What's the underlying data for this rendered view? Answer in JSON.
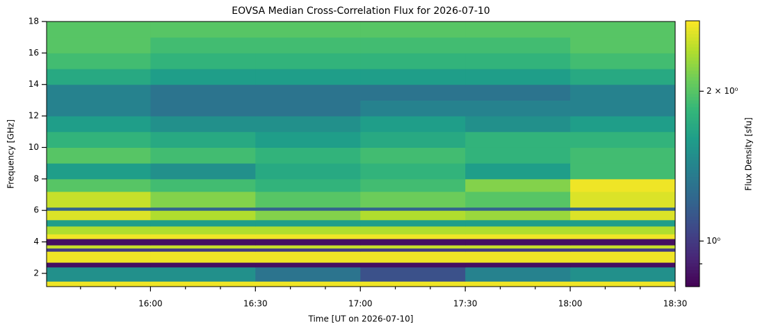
{
  "chart_data": {
    "type": "heatmap",
    "title": "EOVSA Median Cross-Correlation Flux for 2026-07-10",
    "x_label": "Time [UT on 2026-07-10]",
    "y_label": "Frequency [GHz]",
    "colorbar_label": "Flux Density [sfu]",
    "colormap": "viridis",
    "color_scale": "log",
    "xlim": [
      930.3,
      1110
    ],
    "ylim": [
      1.16,
      18
    ],
    "clim": [
      0.81,
      2.77
    ],
    "xticks": [
      {
        "value": 960,
        "label": "16:00"
      },
      {
        "value": 990,
        "label": "16:30"
      },
      {
        "value": 1020,
        "label": "17:00"
      },
      {
        "value": 1050,
        "label": "17:30"
      },
      {
        "value": 1080,
        "label": "18:00"
      },
      {
        "value": 1110,
        "label": "18:30"
      }
    ],
    "xminorticks": [
      940,
      950,
      970,
      980,
      1000,
      1010,
      1030,
      1040,
      1060,
      1070,
      1090,
      1100
    ],
    "yticks": [
      2,
      4,
      6,
      8,
      10,
      12,
      14,
      16,
      18
    ],
    "cticks": [
      {
        "value": 1,
        "label": "10⁰"
      },
      {
        "value": 2,
        "label": "2 × 10⁰"
      }
    ],
    "cminorticks": [
      0.9
    ],
    "x_edges": [
      930.3,
      960,
      990,
      1020,
      1050,
      1080,
      1110
    ],
    "y_edges": [
      1.16,
      1.5,
      2.4,
      2.7,
      3.4,
      3.6,
      3.8,
      4.2,
      4.5,
      5.0,
      5.4,
      6.0,
      6.2,
      7.2,
      8.0,
      9.0,
      10.0,
      11.0,
      12.0,
      13.0,
      14.0,
      15.0,
      16.0,
      17.0,
      18.0
    ],
    "values": [
      [
        2.7,
        2.7,
        2.7,
        2.7,
        2.7,
        2.7
      ],
      [
        1.5,
        1.5,
        1.3,
        1.1,
        1.4,
        1.5
      ],
      [
        0.85,
        0.85,
        0.85,
        0.85,
        0.85,
        0.85
      ],
      [
        2.7,
        2.7,
        2.7,
        2.7,
        2.7,
        2.7
      ],
      [
        1.0,
        1.0,
        1.0,
        1.0,
        1.0,
        1.0
      ],
      [
        2.5,
        2.5,
        2.5,
        2.5,
        2.5,
        2.5
      ],
      [
        0.85,
        0.85,
        0.85,
        0.85,
        0.85,
        0.85
      ],
      [
        2.7,
        2.7,
        2.7,
        2.7,
        2.7,
        2.7
      ],
      [
        2.4,
        2.4,
        2.4,
        2.4,
        2.4,
        2.4
      ],
      [
        1.6,
        1.6,
        1.6,
        1.6,
        1.6,
        1.6
      ],
      [
        2.6,
        2.4,
        2.2,
        2.4,
        2.3,
        2.6
      ],
      [
        1.2,
        1.2,
        1.2,
        1.2,
        1.2,
        1.2
      ],
      [
        2.5,
        2.2,
        2.0,
        2.1,
        2.0,
        2.6
      ],
      [
        2.0,
        1.9,
        1.8,
        1.9,
        2.2,
        2.7
      ],
      [
        1.6,
        1.5,
        1.7,
        1.8,
        1.6,
        1.9
      ],
      [
        2.0,
        1.9,
        1.8,
        1.9,
        1.8,
        1.9
      ],
      [
        1.8,
        1.7,
        1.6,
        1.7,
        1.8,
        1.8
      ],
      [
        1.6,
        1.5,
        1.5,
        1.6,
        1.5,
        1.6
      ],
      [
        1.4,
        1.3,
        1.3,
        1.4,
        1.4,
        1.4
      ],
      [
        1.4,
        1.3,
        1.3,
        1.3,
        1.3,
        1.4
      ],
      [
        1.7,
        1.6,
        1.6,
        1.6,
        1.6,
        1.7
      ],
      [
        1.9,
        1.8,
        1.8,
        1.8,
        1.8,
        1.9
      ],
      [
        2.0,
        1.9,
        1.9,
        1.9,
        1.9,
        2.0
      ],
      [
        2.0,
        2.0,
        2.0,
        2.0,
        2.0,
        2.0
      ]
    ]
  }
}
